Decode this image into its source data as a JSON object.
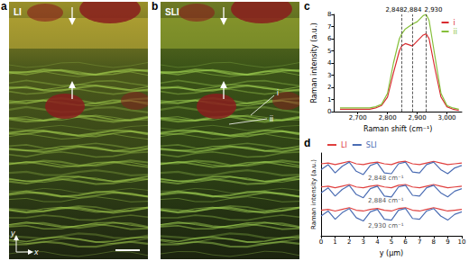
{
  "panels": [
    {
      "letter": "a",
      "label": "LI",
      "axes": {
        "x": "x",
        "y": "y"
      }
    },
    {
      "letter": "b",
      "label": "SLI",
      "line_labels": [
        "i",
        "ii"
      ]
    }
  ],
  "chart_data": [
    {
      "panel": "c",
      "type": "line",
      "x_label": "Raman shift (cm⁻¹)",
      "y_label": "Raman intensity (a.u.)",
      "x": [
        2640,
        2660,
        2680,
        2700,
        2720,
        2740,
        2760,
        2780,
        2800,
        2820,
        2840,
        2848,
        2860,
        2884,
        2900,
        2920,
        2930,
        2940,
        2960,
        2980,
        3000,
        3020,
        3040
      ],
      "series": [
        {
          "name": "i",
          "color": "#d92b30",
          "values": [
            0.2,
            0.2,
            0.2,
            0.2,
            0.2,
            0.2,
            0.3,
            0.5,
            1.2,
            3.2,
            5.0,
            5.4,
            5.6,
            5.4,
            5.8,
            6.3,
            6.4,
            6.0,
            3.5,
            1.2,
            0.4,
            0.2,
            0.1
          ]
        },
        {
          "name": "ii",
          "color": "#86bf3a",
          "values": [
            0.3,
            0.3,
            0.3,
            0.3,
            0.3,
            0.3,
            0.4,
            0.6,
            1.5,
            4.0,
            6.0,
            6.4,
            6.8,
            7.2,
            7.4,
            7.9,
            8.0,
            7.5,
            4.5,
            1.5,
            0.5,
            0.3,
            0.2
          ]
        }
      ],
      "markers": [
        {
          "value": 2848,
          "label": "2,848"
        },
        {
          "value": 2884,
          "label": "2,884"
        },
        {
          "value": 2930,
          "label": "2,930"
        }
      ],
      "xlim": [
        2620,
        3050
      ],
      "xticks": [
        2700,
        2800,
        2900,
        3000
      ],
      "ylim": [
        0,
        8
      ],
      "yticks": [
        0,
        1,
        2,
        3,
        4,
        5,
        6,
        7,
        8
      ],
      "grid": false,
      "legend": "upper right"
    },
    {
      "panel": "d",
      "type": "line",
      "x_label": "y (μm)",
      "y_label": "Raman intensity (a.u.)",
      "x": [
        0,
        0.5,
        1,
        1.5,
        2,
        2.5,
        3,
        3.5,
        4,
        4.5,
        5,
        5.5,
        6,
        6.5,
        7,
        7.5,
        8,
        8.5,
        9,
        9.5,
        10
      ],
      "series": [
        {
          "name": "LI",
          "color": "#e0403f",
          "values": [
            8.7,
            8.8,
            8.6,
            8.8,
            9.0,
            8.7,
            8.6,
            8.8,
            8.9,
            8.7,
            8.6,
            8.9,
            9.0,
            8.7,
            8.6,
            8.8,
            9.0,
            8.8,
            8.6,
            8.7,
            8.8
          ]
        },
        {
          "name": "SLI",
          "color": "#4a6cb3",
          "values": [
            8.0,
            8.6,
            7.6,
            8.4,
            8.9,
            7.8,
            7.4,
            8.5,
            8.8,
            7.6,
            7.5,
            8.7,
            8.9,
            7.7,
            7.6,
            8.6,
            8.9,
            8.0,
            7.5,
            8.2,
            8.5
          ]
        },
        {
          "name": "LI",
          "color": "#e0403f",
          "values": [
            5.9,
            6.0,
            5.8,
            6.0,
            6.2,
            5.9,
            5.8,
            6.0,
            6.1,
            5.9,
            5.8,
            6.1,
            6.2,
            5.9,
            5.8,
            6.0,
            6.2,
            6.0,
            5.8,
            5.9,
            6.0
          ]
        },
        {
          "name": "SLI",
          "color": "#4a6cb3",
          "values": [
            5.2,
            5.8,
            4.8,
            5.6,
            6.1,
            5.0,
            4.6,
            5.7,
            6.0,
            4.8,
            4.7,
            5.9,
            6.1,
            4.9,
            4.8,
            5.8,
            6.1,
            5.2,
            4.7,
            5.4,
            5.7
          ]
        },
        {
          "name": "LI",
          "color": "#e0403f",
          "values": [
            3.1,
            3.2,
            3.0,
            3.2,
            3.4,
            3.1,
            3.0,
            3.2,
            3.3,
            3.1,
            3.0,
            3.3,
            3.4,
            3.1,
            3.0,
            3.2,
            3.4,
            3.2,
            3.0,
            3.1,
            3.2
          ]
        },
        {
          "name": "SLI",
          "color": "#4a6cb3",
          "values": [
            2.4,
            3.0,
            2.0,
            2.8,
            3.3,
            2.2,
            1.8,
            2.9,
            3.2,
            2.0,
            1.9,
            3.1,
            3.3,
            2.1,
            2.0,
            3.0,
            3.3,
            2.4,
            1.9,
            2.6,
            2.9
          ]
        }
      ],
      "annotations": [
        {
          "text": "2,848 cm⁻¹",
          "x": 4.6,
          "y": 7.0
        },
        {
          "text": "2,884 cm⁻¹",
          "x": 4.6,
          "y": 4.2
        },
        {
          "text": "2,930 cm⁻¹",
          "x": 4.6,
          "y": 1.2
        }
      ],
      "xlim": [
        0,
        10
      ],
      "xticks": [
        0,
        1,
        2,
        3,
        4,
        5,
        6,
        7,
        8,
        9,
        10
      ],
      "ylim": [
        0,
        10
      ],
      "grid": false,
      "legend": "upper left",
      "tick_labels": "x"
    }
  ]
}
